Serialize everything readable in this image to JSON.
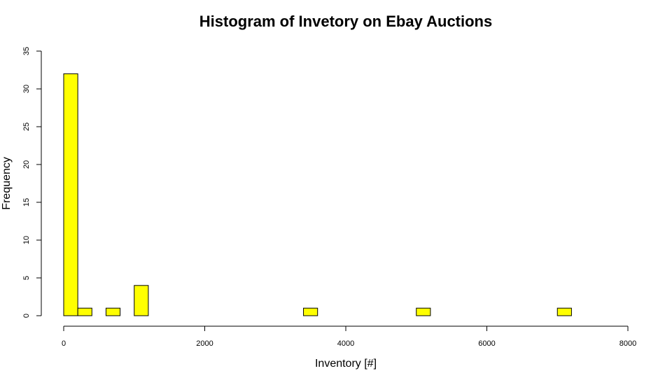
{
  "chart_data": {
    "type": "bar",
    "title": "Histogram of Invetory on Ebay Auctions",
    "xlabel": "Inventory [#]",
    "ylabel": "Frequency",
    "xlim": [
      0,
      8000
    ],
    "ylim": [
      0,
      35
    ],
    "x_ticks": [
      0,
      2000,
      4000,
      6000,
      8000
    ],
    "y_ticks": [
      0,
      5,
      10,
      15,
      20,
      25,
      30,
      35
    ],
    "bin_width": 200,
    "bins": [
      {
        "start": 0,
        "end": 200,
        "count": 32
      },
      {
        "start": 200,
        "end": 400,
        "count": 1
      },
      {
        "start": 600,
        "end": 800,
        "count": 1
      },
      {
        "start": 1000,
        "end": 1200,
        "count": 4
      },
      {
        "start": 3400,
        "end": 3600,
        "count": 1
      },
      {
        "start": 5000,
        "end": 5200,
        "count": 1
      },
      {
        "start": 7000,
        "end": 7200,
        "count": 1
      }
    ],
    "bar_color": "#ffff00",
    "grid": false
  }
}
